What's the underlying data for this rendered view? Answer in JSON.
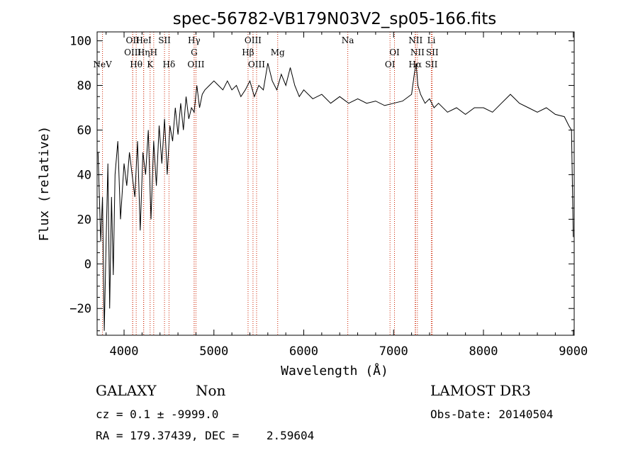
{
  "chart_data": {
    "type": "line",
    "title": "spec-56782-VB179N03V2_sp05-166.fits",
    "xlabel": "Wavelength (Å)",
    "ylabel": "Flux (relative)",
    "xlim": [
      3700,
      9010
    ],
    "ylim": [
      -32,
      104
    ],
    "x_ticks": [
      4000,
      5000,
      6000,
      7000,
      8000,
      9000
    ],
    "x_tick_labels": [
      "4000",
      "5000",
      "6000",
      "7000",
      "8000",
      "9000"
    ],
    "y_ticks": [
      -20,
      0,
      20,
      40,
      60,
      80,
      100
    ],
    "y_tick_labels": [
      "−20",
      "0",
      "20",
      "40",
      "60",
      "80",
      "100"
    ],
    "grid": false,
    "line_color": "#000000",
    "marker_color": "#cc2200",
    "lines": [
      {
        "name": "NeV",
        "wavelength": 3760,
        "tier": 2
      },
      {
        "name": "OII",
        "wavelength": 4096,
        "tier": 0
      },
      {
        "name": "OIII",
        "wavelength": 4096,
        "tier": 1
      },
      {
        "name": "HeI",
        "wavelength": 4218,
        "tier": 0
      },
      {
        "name": "Hη",
        "wavelength": 4218,
        "tier": 1
      },
      {
        "name": "Hθ",
        "wavelength": 4135,
        "tier": 2
      },
      {
        "name": "H",
        "wavelength": 4330,
        "tier": 1
      },
      {
        "name": "K",
        "wavelength": 4290,
        "tier": 2
      },
      {
        "name": "SII",
        "wavelength": 4450,
        "tier": 0
      },
      {
        "name": "Hδ",
        "wavelength": 4500,
        "tier": 2
      },
      {
        "name": "Hγ",
        "wavelength": 4780,
        "tier": 0
      },
      {
        "name": "G",
        "wavelength": 4780,
        "tier": 1
      },
      {
        "name": "OIII",
        "wavelength": 4800,
        "tier": 2
      },
      {
        "name": "OIII",
        "wavelength": 5435,
        "tier": 0
      },
      {
        "name": "Hβ",
        "wavelength": 5380,
        "tier": 1
      },
      {
        "name": "OIII",
        "wavelength": 5475,
        "tier": 2
      },
      {
        "name": "Mg",
        "wavelength": 5710,
        "tier": 1
      },
      {
        "name": "Na",
        "wavelength": 6490,
        "tier": 0
      },
      {
        "name": "OI",
        "wavelength": 7010,
        "tier": 1
      },
      {
        "name": "OI",
        "wavelength": 6960,
        "tier": 2
      },
      {
        "name": "NII",
        "wavelength": 7245,
        "tier": 0
      },
      {
        "name": "NII",
        "wavelength": 7265,
        "tier": 1
      },
      {
        "name": "SII",
        "wavelength": 7430,
        "tier": 1
      },
      {
        "name": "Hα",
        "wavelength": 7240,
        "tier": 2
      },
      {
        "name": "SII",
        "wavelength": 7420,
        "tier": 2
      },
      {
        "name": "Li",
        "wavelength": 7420,
        "tier": 0
      }
    ],
    "spectrum": {
      "x": [
        3710,
        3740,
        3760,
        3780,
        3800,
        3820,
        3840,
        3860,
        3880,
        3900,
        3930,
        3960,
        4000,
        4030,
        4060,
        4090,
        4120,
        4150,
        4180,
        4210,
        4240,
        4270,
        4300,
        4330,
        4360,
        4390,
        4420,
        4450,
        4480,
        4510,
        4540,
        4570,
        4600,
        4630,
        4660,
        4690,
        4720,
        4750,
        4780,
        4810,
        4840,
        4870,
        4900,
        4950,
        5000,
        5050,
        5100,
        5150,
        5200,
        5250,
        5300,
        5350,
        5400,
        5450,
        5500,
        5550,
        5600,
        5650,
        5700,
        5750,
        5800,
        5850,
        5900,
        5950,
        6000,
        6100,
        6200,
        6300,
        6400,
        6500,
        6600,
        6700,
        6800,
        6900,
        7000,
        7100,
        7200,
        7230,
        7250,
        7270,
        7300,
        7350,
        7400,
        7450,
        7500,
        7600,
        7700,
        7800,
        7900,
        8000,
        8100,
        8200,
        8300,
        8350,
        8400,
        8500,
        8600,
        8700,
        8800,
        8900,
        8950,
        8980,
        9000
      ],
      "y": [
        50,
        10,
        30,
        -30,
        10,
        45,
        -20,
        30,
        -5,
        40,
        55,
        20,
        45,
        35,
        50,
        40,
        30,
        55,
        15,
        50,
        40,
        60,
        20,
        55,
        35,
        62,
        45,
        65,
        40,
        62,
        55,
        70,
        58,
        72,
        60,
        75,
        65,
        70,
        68,
        80,
        70,
        76,
        78,
        80,
        82,
        80,
        78,
        82,
        78,
        80,
        75,
        78,
        82,
        75,
        80,
        78,
        90,
        82,
        78,
        85,
        80,
        88,
        80,
        75,
        78,
        74,
        76,
        72,
        75,
        72,
        74,
        72,
        73,
        71,
        72,
        73,
        76,
        85,
        90,
        80,
        76,
        72,
        74,
        70,
        72,
        68,
        70,
        67,
        70,
        70,
        68,
        72,
        76,
        74,
        72,
        70,
        68,
        70,
        67,
        66,
        62,
        60,
        12
      ]
    }
  },
  "footer": {
    "object_class": "GALAXY",
    "subclass": "Non",
    "survey": "LAMOST DR3",
    "cz_line": "cz = 0.1 ± -9999.0",
    "obs_date": "Obs-Date: 20140504",
    "coords": "RA = 179.37439, DEC =    2.59604"
  }
}
